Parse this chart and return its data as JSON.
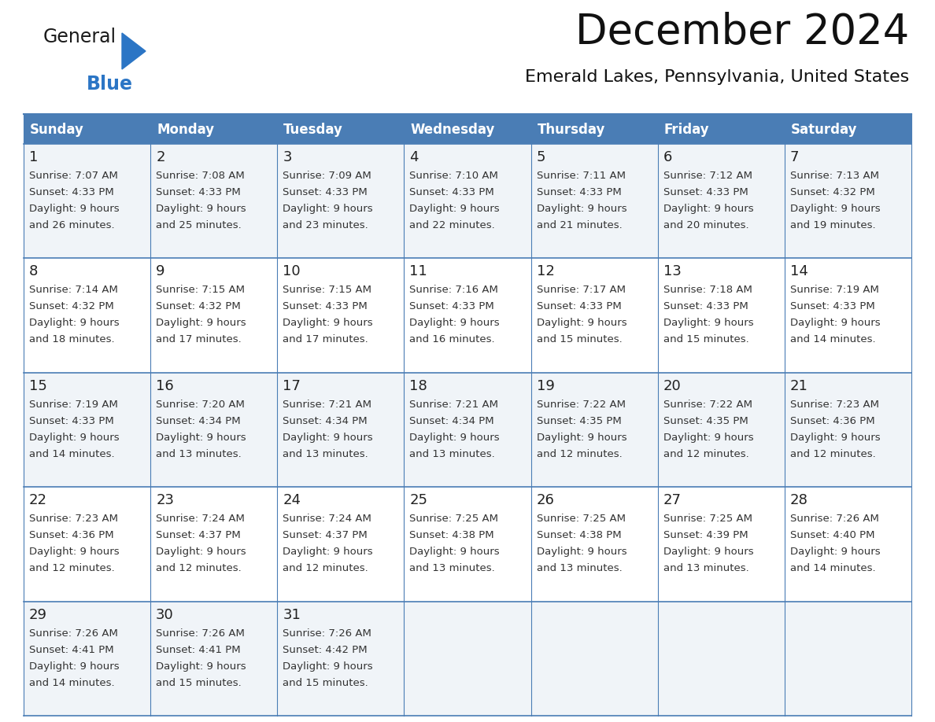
{
  "title": "December 2024",
  "subtitle": "Emerald Lakes, Pennsylvania, United States",
  "days_of_week": [
    "Sunday",
    "Monday",
    "Tuesday",
    "Wednesday",
    "Thursday",
    "Friday",
    "Saturday"
  ],
  "header_bg": "#4A7DB5",
  "header_text": "#FFFFFF",
  "row_bg_odd": "#F0F4F8",
  "row_bg_even": "#FFFFFF",
  "cell_text_color": "#333333",
  "day_num_color": "#222222",
  "border_color": "#4A7DB5",
  "title_color": "#111111",
  "subtitle_color": "#111111",
  "logo_general_color": "#1a1a1a",
  "logo_blue_color": "#2B75C5",
  "weeks": [
    [
      {
        "day": 1,
        "sunrise": "7:07 AM",
        "sunset": "4:33 PM",
        "daylight": "9 hours and 26 minutes."
      },
      {
        "day": 2,
        "sunrise": "7:08 AM",
        "sunset": "4:33 PM",
        "daylight": "9 hours and 25 minutes."
      },
      {
        "day": 3,
        "sunrise": "7:09 AM",
        "sunset": "4:33 PM",
        "daylight": "9 hours and 23 minutes."
      },
      {
        "day": 4,
        "sunrise": "7:10 AM",
        "sunset": "4:33 PM",
        "daylight": "9 hours and 22 minutes."
      },
      {
        "day": 5,
        "sunrise": "7:11 AM",
        "sunset": "4:33 PM",
        "daylight": "9 hours and 21 minutes."
      },
      {
        "day": 6,
        "sunrise": "7:12 AM",
        "sunset": "4:33 PM",
        "daylight": "9 hours and 20 minutes."
      },
      {
        "day": 7,
        "sunrise": "7:13 AM",
        "sunset": "4:32 PM",
        "daylight": "9 hours and 19 minutes."
      }
    ],
    [
      {
        "day": 8,
        "sunrise": "7:14 AM",
        "sunset": "4:32 PM",
        "daylight": "9 hours and 18 minutes."
      },
      {
        "day": 9,
        "sunrise": "7:15 AM",
        "sunset": "4:32 PM",
        "daylight": "9 hours and 17 minutes."
      },
      {
        "day": 10,
        "sunrise": "7:15 AM",
        "sunset": "4:33 PM",
        "daylight": "9 hours and 17 minutes."
      },
      {
        "day": 11,
        "sunrise": "7:16 AM",
        "sunset": "4:33 PM",
        "daylight": "9 hours and 16 minutes."
      },
      {
        "day": 12,
        "sunrise": "7:17 AM",
        "sunset": "4:33 PM",
        "daylight": "9 hours and 15 minutes."
      },
      {
        "day": 13,
        "sunrise": "7:18 AM",
        "sunset": "4:33 PM",
        "daylight": "9 hours and 15 minutes."
      },
      {
        "day": 14,
        "sunrise": "7:19 AM",
        "sunset": "4:33 PM",
        "daylight": "9 hours and 14 minutes."
      }
    ],
    [
      {
        "day": 15,
        "sunrise": "7:19 AM",
        "sunset": "4:33 PM",
        "daylight": "9 hours and 14 minutes."
      },
      {
        "day": 16,
        "sunrise": "7:20 AM",
        "sunset": "4:34 PM",
        "daylight": "9 hours and 13 minutes."
      },
      {
        "day": 17,
        "sunrise": "7:21 AM",
        "sunset": "4:34 PM",
        "daylight": "9 hours and 13 minutes."
      },
      {
        "day": 18,
        "sunrise": "7:21 AM",
        "sunset": "4:34 PM",
        "daylight": "9 hours and 13 minutes."
      },
      {
        "day": 19,
        "sunrise": "7:22 AM",
        "sunset": "4:35 PM",
        "daylight": "9 hours and 12 minutes."
      },
      {
        "day": 20,
        "sunrise": "7:22 AM",
        "sunset": "4:35 PM",
        "daylight": "9 hours and 12 minutes."
      },
      {
        "day": 21,
        "sunrise": "7:23 AM",
        "sunset": "4:36 PM",
        "daylight": "9 hours and 12 minutes."
      }
    ],
    [
      {
        "day": 22,
        "sunrise": "7:23 AM",
        "sunset": "4:36 PM",
        "daylight": "9 hours and 12 minutes."
      },
      {
        "day": 23,
        "sunrise": "7:24 AM",
        "sunset": "4:37 PM",
        "daylight": "9 hours and 12 minutes."
      },
      {
        "day": 24,
        "sunrise": "7:24 AM",
        "sunset": "4:37 PM",
        "daylight": "9 hours and 12 minutes."
      },
      {
        "day": 25,
        "sunrise": "7:25 AM",
        "sunset": "4:38 PM",
        "daylight": "9 hours and 13 minutes."
      },
      {
        "day": 26,
        "sunrise": "7:25 AM",
        "sunset": "4:38 PM",
        "daylight": "9 hours and 13 minutes."
      },
      {
        "day": 27,
        "sunrise": "7:25 AM",
        "sunset": "4:39 PM",
        "daylight": "9 hours and 13 minutes."
      },
      {
        "day": 28,
        "sunrise": "7:26 AM",
        "sunset": "4:40 PM",
        "daylight": "9 hours and 14 minutes."
      }
    ],
    [
      {
        "day": 29,
        "sunrise": "7:26 AM",
        "sunset": "4:41 PM",
        "daylight": "9 hours and 14 minutes."
      },
      {
        "day": 30,
        "sunrise": "7:26 AM",
        "sunset": "4:41 PM",
        "daylight": "9 hours and 15 minutes."
      },
      {
        "day": 31,
        "sunrise": "7:26 AM",
        "sunset": "4:42 PM",
        "daylight": "9 hours and 15 minutes."
      },
      null,
      null,
      null,
      null
    ]
  ]
}
